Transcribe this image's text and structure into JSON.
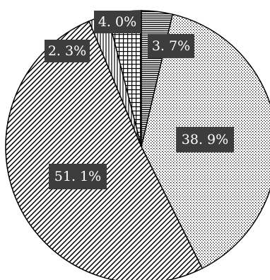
{
  "chart_data": {
    "type": "pie",
    "slices": [
      {
        "label": "3.7%",
        "value": 3.7,
        "pattern": "horizontal-lines"
      },
      {
        "label": "38.9%",
        "value": 38.9,
        "pattern": "dots"
      },
      {
        "label": "51.1%",
        "value": 51.1,
        "pattern": "diagonal-hatch"
      },
      {
        "label": "2.3%",
        "value": 2.3,
        "pattern": "vertical-lines"
      },
      {
        "label": "4.0%",
        "value": 4.0,
        "pattern": "grid"
      }
    ],
    "data_labels": [
      "3. 7%",
      "38. 9%",
      "51. 1%",
      "2. 3%",
      "4. 0%"
    ],
    "start_angle_deg": 0,
    "direction": "clockwise",
    "label_style": {
      "background": "#3d3d3d",
      "text_color": "#ffffff"
    },
    "outline_color": "#000000"
  }
}
